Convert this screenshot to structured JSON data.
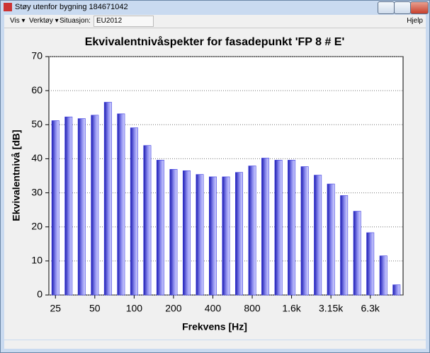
{
  "window": {
    "title": "Støy utenfor bygning 184671042"
  },
  "menu": [
    "Vis ▾",
    "Verktøy ▾",
    "Situasjon:",
    "EU2012",
    "Hjelp"
  ],
  "chart_data": {
    "type": "bar",
    "title": "Ekvivalentnivåspekter for fasadepunkt 'FP 8 # E'",
    "x_label": "Frekvens [Hz]",
    "y_label": "Ekvivalentnivå [dB]",
    "categories": [
      "25",
      null,
      null,
      "50",
      null,
      null,
      "100",
      null,
      null,
      "200",
      null,
      null,
      "400",
      null,
      null,
      "800",
      null,
      null,
      "1.6k",
      null,
      null,
      "3.15k",
      null,
      null,
      "6.3k",
      null,
      null
    ],
    "values": [
      51.2,
      52.3,
      51.8,
      52.8,
      56.6,
      53.2,
      49.1,
      43.9,
      39.6,
      36.9,
      36.5,
      35.4,
      34.7,
      34.7,
      36.0,
      37.9,
      40.2,
      39.6,
      39.6,
      37.7,
      35.2,
      32.6,
      29.2,
      24.6,
      18.3,
      11.5,
      3.0
    ],
    "color": "#3c3ce0",
    "ylim": [
      0,
      70
    ],
    "yticks": [
      0,
      10,
      20,
      30,
      40,
      50,
      60,
      70
    ],
    "grid": true
  }
}
